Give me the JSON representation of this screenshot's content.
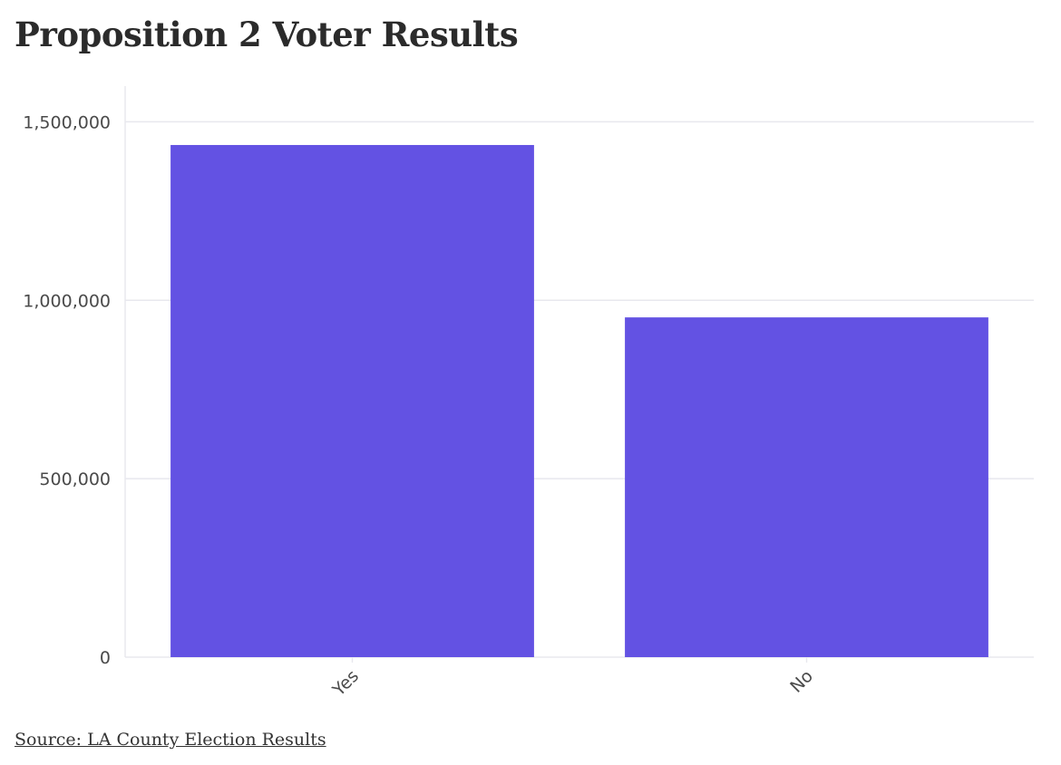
{
  "title": "Proposition 2 Voter Results",
  "source_label": "Source: LA County Election Results",
  "colors": {
    "bar": "#6352e3",
    "grid": "#e8e8ee",
    "text": "#2b2b2b"
  },
  "chart_data": {
    "type": "bar",
    "title": "Proposition 2 Voter Results",
    "categories": [
      "Yes",
      "No"
    ],
    "values": [
      1435000,
      952000
    ],
    "ylim": [
      0,
      1600000
    ],
    "yticks": [
      0,
      500000,
      1000000,
      1500000
    ],
    "ytick_labels": [
      "0",
      "500,000",
      "1,000,000",
      "1,500,000"
    ],
    "xlabel": "",
    "ylabel": "",
    "grid": true,
    "legend": false
  }
}
